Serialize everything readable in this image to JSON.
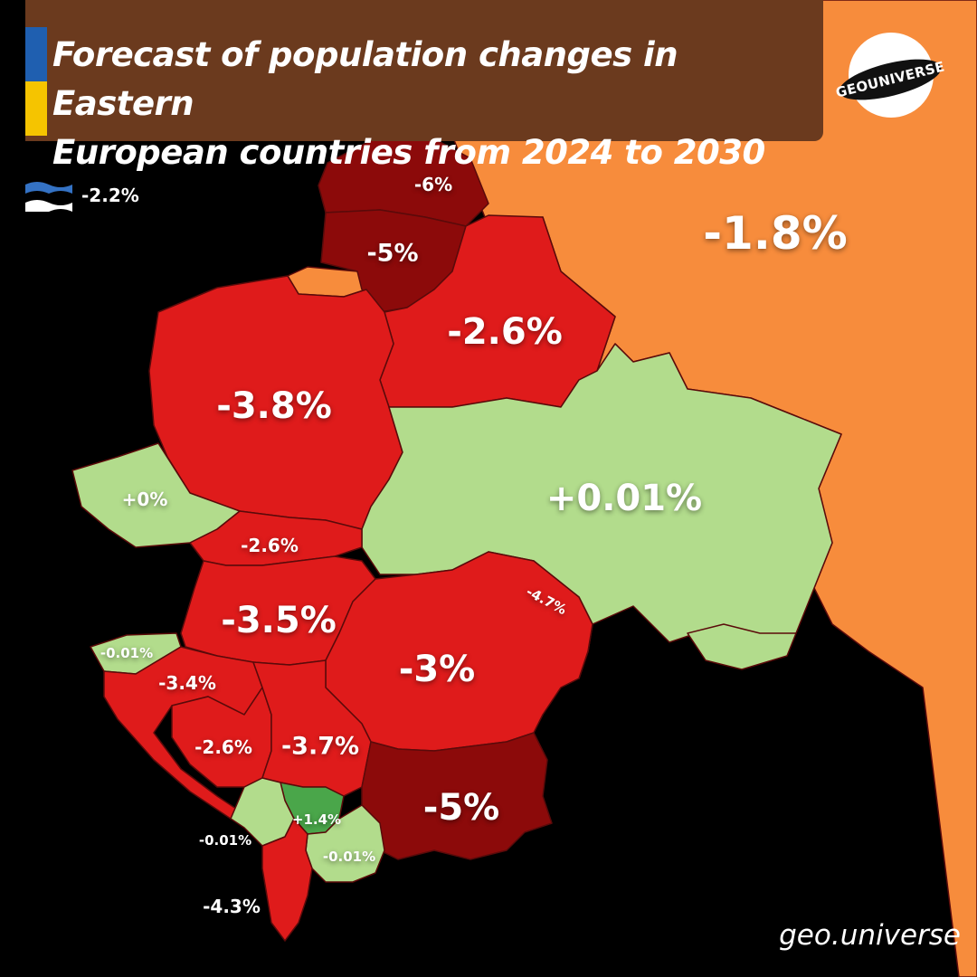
{
  "title": {
    "line1": "Forecast of population changes in Eastern",
    "line2": "European countries from 2024 to 2030"
  },
  "logo": {
    "text": "GEOUNIVERSE"
  },
  "credit": "geo.universe",
  "estonia": {
    "value": "-2.2%",
    "flag_colors": [
      "#3472c4",
      "#000000",
      "#ffffff"
    ]
  },
  "colors": {
    "background": "#000000",
    "russia": "#f78c3c",
    "red": "#df1b1b",
    "dark_red": "#8c0a0a",
    "light_green": "#b2dc8c",
    "green": "#4aa64a",
    "title_bg": "#6b3a1e"
  },
  "regions": [
    {
      "value": "-1.8%",
      "color": "russia"
    },
    {
      "value": "-6%",
      "color": "dark_red"
    },
    {
      "value": "-5%",
      "color": "dark_red"
    },
    {
      "value": "-2.6%",
      "color": "red"
    },
    {
      "value": "-3.8%",
      "color": "red"
    },
    {
      "value": "+0%",
      "color": "light_green"
    },
    {
      "value": "+0.01%",
      "color": "light_green"
    },
    {
      "value": "-2.6%",
      "color": "red"
    },
    {
      "value": "-3.5%",
      "color": "red"
    },
    {
      "value": "-4.7%",
      "color": "red"
    },
    {
      "value": "-0.01%",
      "color": "light_green"
    },
    {
      "value": "-3.4%",
      "color": "red"
    },
    {
      "value": "-3%",
      "color": "red"
    },
    {
      "value": "-2.6%",
      "color": "red"
    },
    {
      "value": "-3.7%",
      "color": "red"
    },
    {
      "value": "-5%",
      "color": "dark_red"
    },
    {
      "value": "+1.4%",
      "color": "green"
    },
    {
      "value": "-0.01%",
      "color": "light_green"
    },
    {
      "value": "-0.01%",
      "color": "light_green"
    },
    {
      "value": "-4.3%",
      "color": "red"
    }
  ]
}
